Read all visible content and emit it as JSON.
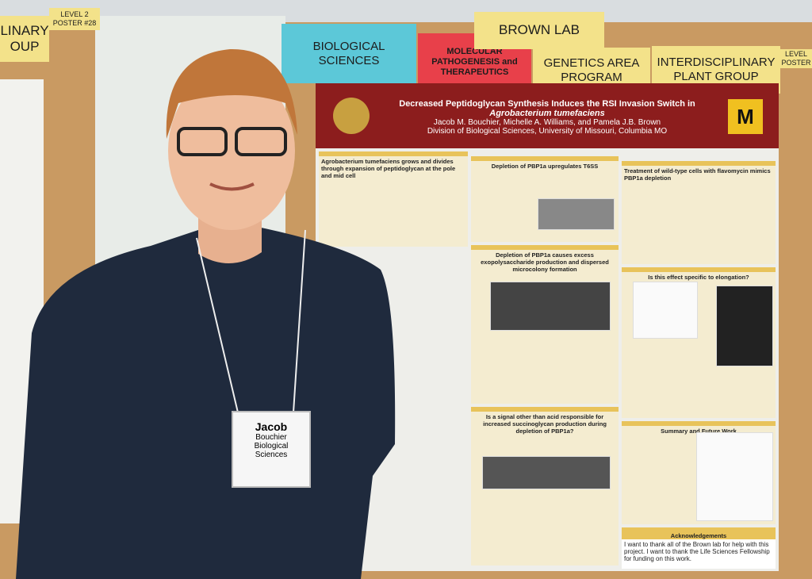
{
  "signs": {
    "left_partial": [
      "LINARY",
      "OUP"
    ],
    "level_left": [
      "LEVEL 2",
      "POSTER #28"
    ],
    "biological": "BIOLOGICAL SCIENCES",
    "molecular": "MOLECULAR PATHOGENESIS and THERAPEUTICS",
    "brown_lab": "BROWN LAB",
    "genetics": "GENETICS AREA PROGRAM",
    "plant": "INTERDISCIPLINARY PLANT GROUP",
    "level_right": [
      "LEVEL",
      "POSTER"
    ]
  },
  "poster": {
    "title": "Decreased Peptidoglycan Synthesis Induces the RSI Invasion Switch in",
    "organism": "Agrobacterium tumefaciens",
    "authors": "Jacob M. Bouchier, Michelle A. Williams, and Pamela J.B. Brown",
    "affiliation": "Division of Biological Sciences, University of Missouri, Columbia MO",
    "sections": [
      "Agrobacterium tumefaciens grows and divides through expansion of peptidoglycan at the pole and mid cell",
      "Depletion of PBP1a upregulates T6SS",
      "Treatment of wild-type cells with flavomycin mimics PBP1a depletion",
      "Depletion of PBP1a causes excess exopolysaccharide production and dispersed microcolony formation",
      "Is this effect specific to elongation?",
      "Is a signal other than acid responsible for increased succinoglycan production during depletion of PBP1a?",
      "Summary and Future Work"
    ],
    "acknowledgements": {
      "heading": "Acknowledgements",
      "text": "I want to thank all of the Brown lab for help with this project. I want to thank the Life Sciences Fellowship for funding on this work."
    }
  },
  "badge": {
    "first": "Jacob",
    "last": "Bouchier",
    "dept": "Biological Sciences"
  }
}
